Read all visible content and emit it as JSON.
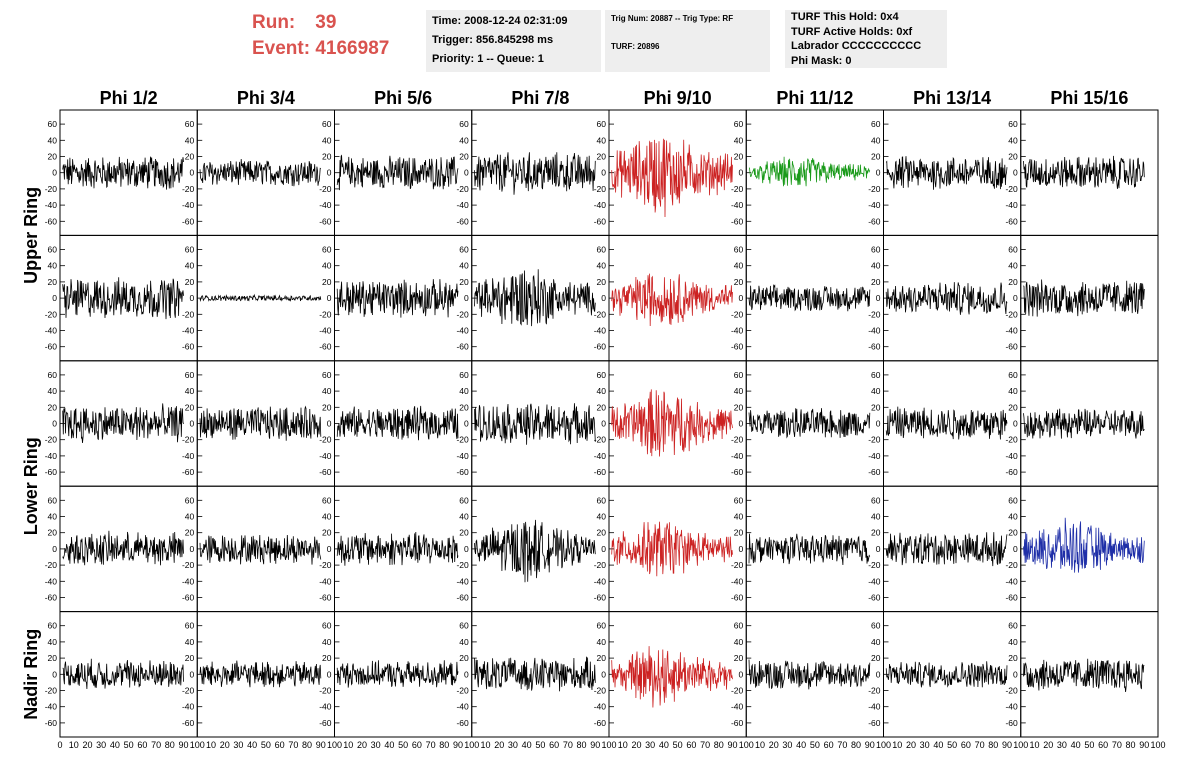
{
  "header": {
    "run_label": "Run:",
    "run_value": "39",
    "event_label": "Event:",
    "event_value": "4166987",
    "time_text": "Time: 2008-12-24 02:31:09",
    "trigger_text": "Trigger: 856.845298 ms",
    "priority_text": "Priority: 1 -- Queue: 1",
    "trig_num_text": "Trig Num: 20887 -- Trig Type: RF",
    "turf_text": "TURF: 20896",
    "turf_hold_text": "TURF This Hold: 0x4",
    "turf_active_text": "TURF Active Holds: 0xf",
    "labrador_text": "Labrador CCCCCCCCCC",
    "phi_mask_text": "Phi Mask: 0"
  },
  "colors": {
    "run_text": "#d9534f",
    "trace_default": "#000000",
    "trace_red": "#cc2222",
    "trace_green": "#1a9a1a",
    "trace_blue": "#1f2fa8",
    "info_bg": "#eeeeee"
  },
  "chart_data": {
    "type": "line",
    "column_labels": [
      "Phi 1/2",
      "Phi 3/4",
      "Phi 5/6",
      "Phi 7/8",
      "Phi 9/10",
      "Phi 11/12",
      "Phi 13/14",
      "Phi 15/16"
    ],
    "row_labels": [
      "Upper Ring",
      "Lower Ring",
      "Nadir Ring"
    ],
    "y_ticks": [
      -60,
      -40,
      -20,
      0,
      20,
      40,
      60
    ],
    "ylim": [
      -70,
      70
    ],
    "xlim": [
      0,
      100
    ],
    "x_ticks": [
      0,
      10,
      20,
      30,
      40,
      50,
      60,
      70,
      80,
      90,
      100
    ],
    "rows": [
      [
        {
          "color": "trace_default",
          "amplitude": 18
        },
        {
          "color": "trace_default",
          "amplitude": 14
        },
        {
          "color": "trace_default",
          "amplitude": 18
        },
        {
          "color": "trace_default",
          "amplitude": 22
        },
        {
          "color": "trace_red",
          "amplitude": 40
        },
        {
          "color": "trace_green",
          "amplitude": 16
        },
        {
          "color": "trace_default",
          "amplitude": 18
        },
        {
          "color": "trace_default",
          "amplitude": 18
        }
      ],
      [
        {
          "color": "trace_default",
          "amplitude": 22
        },
        {
          "color": "trace_default",
          "amplitude": 3
        },
        {
          "color": "trace_default",
          "amplitude": 20
        },
        {
          "color": "trace_default",
          "amplitude": 32
        },
        {
          "color": "trace_red",
          "amplitude": 28
        },
        {
          "color": "trace_default",
          "amplitude": 14
        },
        {
          "color": "trace_default",
          "amplitude": 18
        },
        {
          "color": "trace_default",
          "amplitude": 20
        }
      ],
      [
        {
          "color": "trace_default",
          "amplitude": 20
        },
        {
          "color": "trace_default",
          "amplitude": 18
        },
        {
          "color": "trace_default",
          "amplitude": 18
        },
        {
          "color": "trace_default",
          "amplitude": 22
        },
        {
          "color": "trace_red",
          "amplitude": 34
        },
        {
          "color": "trace_default",
          "amplitude": 16
        },
        {
          "color": "trace_default",
          "amplitude": 18
        },
        {
          "color": "trace_default",
          "amplitude": 16
        }
      ],
      [
        {
          "color": "trace_default",
          "amplitude": 18
        },
        {
          "color": "trace_default",
          "amplitude": 16
        },
        {
          "color": "trace_default",
          "amplitude": 18
        },
        {
          "color": "trace_default",
          "amplitude": 30
        },
        {
          "color": "trace_red",
          "amplitude": 28
        },
        {
          "color": "trace_default",
          "amplitude": 16
        },
        {
          "color": "trace_default",
          "amplitude": 18
        },
        {
          "color": "trace_blue",
          "amplitude": 28
        }
      ],
      [
        {
          "color": "trace_default",
          "amplitude": 16
        },
        {
          "color": "trace_default",
          "amplitude": 14
        },
        {
          "color": "trace_default",
          "amplitude": 14
        },
        {
          "color": "trace_default",
          "amplitude": 18
        },
        {
          "color": "trace_red",
          "amplitude": 30
        },
        {
          "color": "trace_default",
          "amplitude": 16
        },
        {
          "color": "trace_default",
          "amplitude": 14
        },
        {
          "color": "trace_default",
          "amplitude": 18
        }
      ]
    ]
  }
}
